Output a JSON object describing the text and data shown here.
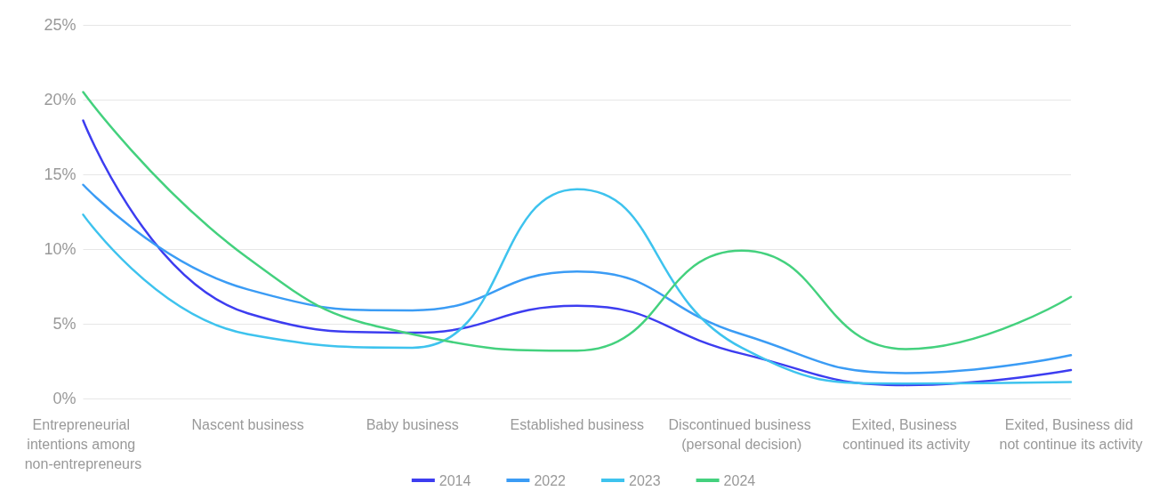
{
  "chart_data": {
    "type": "line",
    "categories": [
      "Entrepreneurial intentions among non-entrepreneurs",
      "Nascent business",
      "Baby business",
      "Established business",
      "Discontinued business (personal decision)",
      "Exited, Business continued its activity",
      "Exited, Business did not continue its activity"
    ],
    "series": [
      {
        "name": "2014",
        "color": "#3d3df0",
        "values": [
          18.6,
          5.7,
          4.4,
          6.2,
          3.0,
          0.9,
          1.9
        ]
      },
      {
        "name": "2022",
        "color": "#3b9cf5",
        "values": [
          14.3,
          7.3,
          5.9,
          8.5,
          4.3,
          1.7,
          2.9
        ]
      },
      {
        "name": "2023",
        "color": "#3ec3ee",
        "values": [
          12.3,
          4.3,
          3.4,
          14.0,
          3.4,
          1.0,
          1.1
        ]
      },
      {
        "name": "2024",
        "color": "#44d17e",
        "values": [
          20.5,
          9.4,
          4.3,
          3.2,
          9.9,
          3.3,
          6.8
        ]
      }
    ],
    "ylim": [
      0,
      25
    ],
    "yticks": [
      {
        "value": 0,
        "label": "0%"
      },
      {
        "value": 5,
        "label": "5%"
      },
      {
        "value": 10,
        "label": "10%"
      },
      {
        "value": 15,
        "label": "15%"
      },
      {
        "value": 20,
        "label": "20%"
      },
      {
        "value": 25,
        "label": "25%"
      }
    ],
    "grid": "y",
    "legend": "bottom",
    "marker": "none",
    "line_style": "solid"
  }
}
